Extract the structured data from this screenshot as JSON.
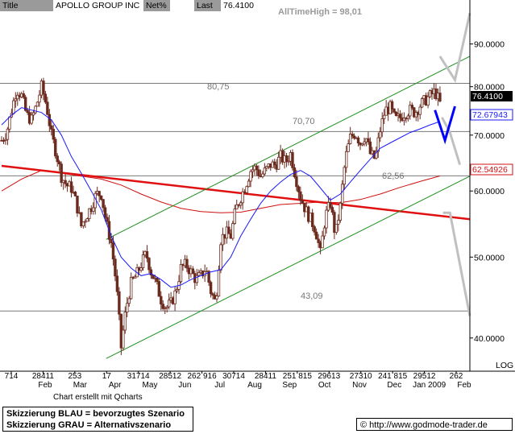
{
  "header": {
    "title_label": "Title",
    "title_value": "APOLLO GROUP INC",
    "net_label": "Net%",
    "net_value": "",
    "last_label": "Last",
    "last_value": "76.4100"
  },
  "annotations": {
    "all_time_high": "AllTimeHigh  =  98,01",
    "level_80": "80,75",
    "level_70": "70,70",
    "level_62": "62,56",
    "level_43": "43,09"
  },
  "badges": {
    "last": "76.4100",
    "ma_blue": "72.67943",
    "ma_red": "62.54926"
  },
  "footer": {
    "credit": "Chart erstellt mit Qcharts",
    "legend_blue": "Skizzierung BLAU = bevorzugtes Szenario",
    "legend_grey": "Skizzierung GRAU = Alternativszenario",
    "url": "http://www.godmode-trader.de",
    "scale_mode": "LOG"
  },
  "colors": {
    "candle": "#6b2a1e",
    "ma_short": "#1a1aff",
    "ma_long": "#d01010",
    "trend_red": "#e01010",
    "channel": "#1f8f1f",
    "hline": "#7a7a7a",
    "scenario_grey": "#c0c0c0",
    "scenario_blue": "#0000ff"
  },
  "chart_data": {
    "type": "candlestick",
    "yscale": "log",
    "ylim": [
      36.5,
      98.5
    ],
    "y_ticks": [
      {
        "value": 90,
        "label": "90.0000"
      },
      {
        "value": 80,
        "label": "80.0000"
      },
      {
        "value": 70,
        "label": "70.0000"
      },
      {
        "value": 60,
        "label": "60.0000"
      },
      {
        "value": 50,
        "label": "50.0000"
      },
      {
        "value": 40,
        "label": "40.0000"
      }
    ],
    "x_tick_labels": [
      "714",
      "28411",
      "253",
      "17",
      "31714",
      "28512",
      "262 916",
      "30714",
      "28411",
      "251 815",
      "29613",
      "27310",
      "241 815",
      "29512",
      "262"
    ],
    "x_month_labels": [
      "Feb",
      "Mar",
      "Apr",
      "May",
      "Jun",
      "Jul",
      "Aug",
      "Sep",
      "Oct",
      "Nov",
      "Dec",
      "Jan 2009",
      "Feb"
    ],
    "horizontal_levels": [
      80.75,
      70.7,
      62.56,
      43.09
    ],
    "close_path": [
      [
        0,
        69
      ],
      [
        0.5,
        70.5
      ],
      [
        1,
        75
      ],
      [
        1.5,
        79.5
      ],
      [
        2,
        78
      ],
      [
        2.5,
        74
      ],
      [
        3,
        73
      ],
      [
        3.5,
        76
      ],
      [
        4,
        80
      ],
      [
        4.5,
        76
      ],
      [
        5,
        70
      ],
      [
        5.5,
        66.5
      ],
      [
        6,
        62.5
      ],
      [
        6.5,
        61
      ],
      [
        7,
        60.5
      ],
      [
        7.5,
        58
      ],
      [
        8,
        54.5
      ],
      [
        8.5,
        56
      ],
      [
        9,
        57.5
      ],
      [
        9.5,
        59.5
      ],
      [
        10,
        59.5
      ],
      [
        10.5,
        55
      ],
      [
        11,
        52
      ],
      [
        11.5,
        46.5
      ],
      [
        12,
        39
      ],
      [
        12.5,
        43.5
      ],
      [
        13,
        46.5
      ],
      [
        13.5,
        47.5
      ],
      [
        14,
        49
      ],
      [
        14.5,
        50.5
      ],
      [
        15,
        48
      ],
      [
        15.5,
        46.5
      ],
      [
        16,
        44.5
      ],
      [
        16.5,
        43.5
      ],
      [
        17,
        44
      ],
      [
        17.5,
        45.5
      ],
      [
        18,
        48.5
      ],
      [
        18.5,
        49
      ],
      [
        19,
        48
      ],
      [
        19.5,
        47
      ],
      [
        20,
        47.5
      ],
      [
        20.5,
        48.5
      ],
      [
        21,
        45.5
      ],
      [
        21.5,
        44
      ],
      [
        22,
        52.5
      ],
      [
        22.5,
        53.5
      ],
      [
        23,
        53
      ],
      [
        23.5,
        57
      ],
      [
        24,
        59
      ],
      [
        24.5,
        61
      ],
      [
        25,
        63.5
      ],
      [
        25.5,
        64
      ],
      [
        26,
        62.5
      ],
      [
        26.5,
        63.5
      ],
      [
        27,
        64.5
      ],
      [
        27.5,
        64.5
      ],
      [
        28,
        66
      ],
      [
        28.5,
        65
      ],
      [
        29,
        66.5
      ],
      [
        29.5,
        62.5
      ],
      [
        30,
        59
      ],
      [
        30.5,
        57
      ],
      [
        31,
        55.5
      ],
      [
        31.5,
        54
      ],
      [
        32,
        50.5
      ],
      [
        32.5,
        56
      ],
      [
        33,
        58
      ],
      [
        33.5,
        53
      ],
      [
        34,
        57.5
      ],
      [
        34.5,
        65.5
      ],
      [
        35,
        69.5
      ],
      [
        35.5,
        70.5
      ],
      [
        36,
        68.5
      ],
      [
        36.5,
        70
      ],
      [
        37,
        66.5
      ],
      [
        37.5,
        65.5
      ],
      [
        38,
        71
      ],
      [
        38.5,
        75
      ],
      [
        39,
        75.5
      ],
      [
        39.5,
        73
      ],
      [
        40,
        73.5
      ],
      [
        40.5,
        74.5
      ],
      [
        41,
        75
      ],
      [
        41.5,
        74.5
      ],
      [
        42,
        76
      ],
      [
        42.5,
        77
      ],
      [
        43,
        78
      ],
      [
        43.5,
        79
      ],
      [
        44,
        76.41
      ]
    ],
    "series": [
      {
        "name": "",
        "kind": "moving_average_short",
        "badge": 72.67943,
        "points": [
          [
            0,
            72
          ],
          [
            1,
            74
          ],
          [
            2,
            75.5
          ],
          [
            3,
            75
          ],
          [
            4,
            74.5
          ],
          [
            5,
            73
          ],
          [
            6,
            70
          ],
          [
            7,
            66
          ],
          [
            8,
            63
          ],
          [
            9,
            60
          ],
          [
            10,
            57
          ],
          [
            11,
            53
          ],
          [
            12,
            50
          ],
          [
            13,
            48.5
          ],
          [
            14,
            47.5
          ],
          [
            15,
            47.8
          ],
          [
            16,
            47
          ],
          [
            17,
            46
          ],
          [
            18,
            46.3
          ],
          [
            19,
            47
          ],
          [
            20,
            47.5
          ],
          [
            21,
            48
          ],
          [
            22,
            48.3
          ],
          [
            23,
            50
          ],
          [
            24,
            53
          ],
          [
            25,
            55.5
          ],
          [
            26,
            58
          ],
          [
            27,
            60
          ],
          [
            28,
            61.5
          ],
          [
            29,
            62.8
          ],
          [
            30,
            63.5
          ],
          [
            31,
            62.5
          ],
          [
            32,
            60.5
          ],
          [
            33,
            58.5
          ],
          [
            34,
            59.5
          ],
          [
            35,
            61.5
          ],
          [
            36,
            63.5
          ],
          [
            37,
            65.5
          ],
          [
            38,
            67.5
          ],
          [
            39,
            68.5
          ],
          [
            40,
            69.5
          ],
          [
            41,
            70.5
          ],
          [
            42,
            71.2
          ],
          [
            43,
            72
          ],
          [
            44,
            72.68
          ]
        ]
      },
      {
        "name": "",
        "kind": "moving_average_long",
        "badge": 62.54926,
        "points": [
          [
            0,
            60
          ],
          [
            2,
            62
          ],
          [
            4,
            63.5
          ],
          [
            6,
            63
          ],
          [
            8,
            62.5
          ],
          [
            10,
            62
          ],
          [
            12,
            61
          ],
          [
            14,
            59.5
          ],
          [
            16,
            58.2
          ],
          [
            18,
            57.2
          ],
          [
            20,
            56.7
          ],
          [
            22,
            56.5
          ],
          [
            24,
            56.6
          ],
          [
            26,
            57.2
          ],
          [
            28,
            57.8
          ],
          [
            30,
            58
          ],
          [
            32,
            58.2
          ],
          [
            34,
            58.1
          ],
          [
            36,
            58.6
          ],
          [
            38,
            59.5
          ],
          [
            40,
            60.6
          ],
          [
            42,
            61.6
          ],
          [
            44,
            62.55
          ]
        ]
      },
      {
        "name": "",
        "kind": "trendline",
        "points": [
          [
            0,
            64.3
          ],
          [
            47,
            55.5
          ]
        ]
      },
      {
        "name": "",
        "kind": "channel_upper",
        "points": [
          [
            10.5,
            52.5
          ],
          [
            47,
            87
          ]
        ]
      },
      {
        "name": "",
        "kind": "channel_lower",
        "points": [
          [
            10.5,
            37.8
          ],
          [
            47,
            62.5
          ]
        ]
      },
      {
        "name": "",
        "kind": "scenario_preferred",
        "points": [
          [
            43.5,
            75
          ],
          [
            44.5,
            69
          ],
          [
            45.5,
            75.8
          ]
        ]
      },
      {
        "name": "",
        "kind": "scenario_alternative",
        "points": [
          [
            44,
            87
          ],
          [
            45.5,
            81.5
          ],
          [
            47,
            98
          ],
          [
            44.2,
            73.5
          ],
          [
            45,
            70.5
          ],
          [
            46,
            64.5
          ],
          [
            44.3,
            56.5
          ],
          [
            45,
            56.5
          ],
          [
            47,
            42.5
          ]
        ]
      }
    ]
  }
}
